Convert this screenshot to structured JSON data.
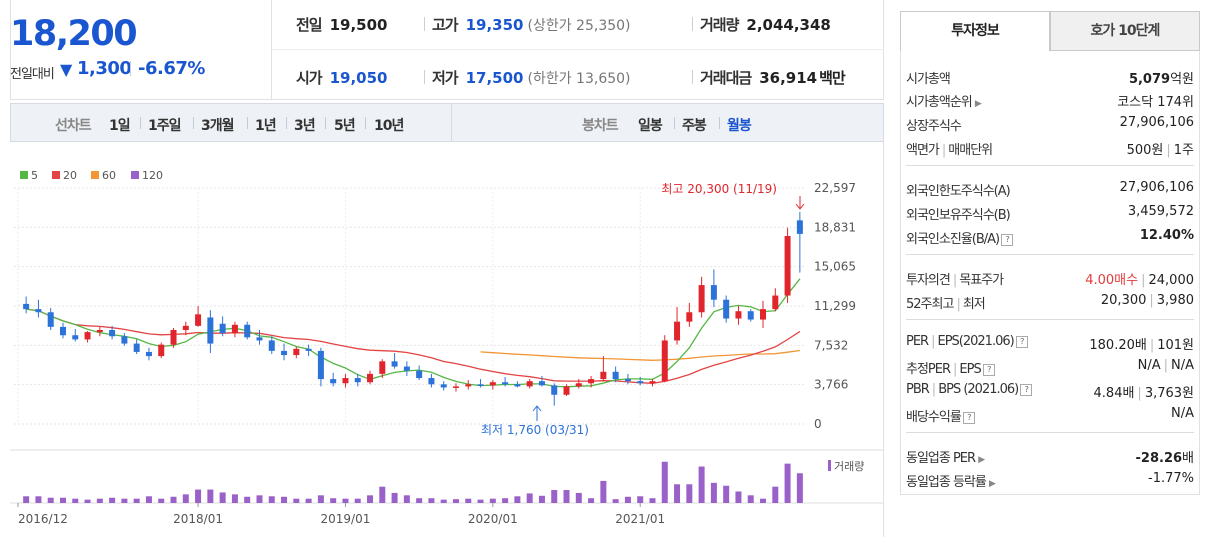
{
  "summary": {
    "current_price": "18,200",
    "change_label": "전일대비",
    "change_arrow": "▼",
    "change_value": "1,300",
    "change_pct": "-6.67%"
  },
  "stats": {
    "prev_label": "전일",
    "prev_value": "19,500",
    "high_label": "고가",
    "high_value": "19,350",
    "upper_limit": "(상한가 25,350)",
    "volume_label": "거래량",
    "volume_value": "2,044,348",
    "open_label": "시가",
    "open_value": "19,050",
    "low_label": "저가",
    "low_value": "17,500",
    "lower_limit": "(하한가 13,650)",
    "amount_label": "거래대금",
    "amount_value": "36,914",
    "amount_unit": "백만"
  },
  "toolbar": {
    "line_label": "선차트",
    "line_periods": [
      "1일",
      "1주일",
      "3개월",
      "1년",
      "3년",
      "5년",
      "10년"
    ],
    "candle_label": "봉차트",
    "candle_periods": [
      "일봉",
      "주봉",
      "월봉"
    ],
    "active_candle": "월봉"
  },
  "chart_data": {
    "type": "candlestick",
    "legend": [
      "5",
      "20",
      "60",
      "120"
    ],
    "ma_colors": {
      "5": "#55b746",
      "20": "#e34444",
      "60": "#f29636",
      "120": "#9a62c8"
    },
    "up_color": "#e0262c",
    "down_color": "#2c73d9",
    "y_ticks": [
      "22,597",
      "18,831",
      "15,065",
      "11,299",
      "7,532",
      "3,766",
      "0"
    ],
    "ylim": [
      0,
      22597
    ],
    "x_labels": [
      "2016/12",
      "2018/01",
      "2019/01",
      "2020/01",
      "2021/01"
    ],
    "volume_label": "거래량",
    "high_annotation": "최고 20,300 (11/19)",
    "low_annotation": "최저 1,760 (03/31)",
    "candles": [
      {
        "o": 11500,
        "h": 12200,
        "l": 10600,
        "c": 11000
      },
      {
        "o": 11000,
        "h": 11900,
        "l": 10200,
        "c": 10700
      },
      {
        "o": 10700,
        "h": 11100,
        "l": 9000,
        "c": 9300
      },
      {
        "o": 9300,
        "h": 9700,
        "l": 8200,
        "c": 8500
      },
      {
        "o": 8500,
        "h": 9100,
        "l": 7900,
        "c": 8100
      },
      {
        "o": 8100,
        "h": 8900,
        "l": 7800,
        "c": 8800
      },
      {
        "o": 8800,
        "h": 9300,
        "l": 8400,
        "c": 9000
      },
      {
        "o": 9000,
        "h": 9400,
        "l": 8100,
        "c": 8400
      },
      {
        "o": 8400,
        "h": 8700,
        "l": 7500,
        "c": 7700
      },
      {
        "o": 7700,
        "h": 8100,
        "l": 6700,
        "c": 6900
      },
      {
        "o": 6900,
        "h": 7300,
        "l": 6100,
        "c": 6500
      },
      {
        "o": 6500,
        "h": 7800,
        "l": 6300,
        "c": 7600
      },
      {
        "o": 7600,
        "h": 9200,
        "l": 7300,
        "c": 9000
      },
      {
        "o": 9000,
        "h": 9800,
        "l": 8500,
        "c": 9400
      },
      {
        "o": 9400,
        "h": 11300,
        "l": 9300,
        "c": 10500
      },
      {
        "o": 10200,
        "h": 10900,
        "l": 6800,
        "c": 7700
      },
      {
        "o": 9600,
        "h": 10300,
        "l": 8400,
        "c": 8700
      },
      {
        "o": 8700,
        "h": 9800,
        "l": 8300,
        "c": 9500
      },
      {
        "o": 9500,
        "h": 9800,
        "l": 8100,
        "c": 8300
      },
      {
        "o": 8300,
        "h": 9000,
        "l": 7600,
        "c": 8000
      },
      {
        "o": 8000,
        "h": 8400,
        "l": 6700,
        "c": 7000
      },
      {
        "o": 7000,
        "h": 7700,
        "l": 6100,
        "c": 6600
      },
      {
        "o": 6600,
        "h": 7400,
        "l": 6300,
        "c": 7200
      },
      {
        "o": 7200,
        "h": 7600,
        "l": 6500,
        "c": 7000
      },
      {
        "o": 7000,
        "h": 7300,
        "l": 3600,
        "c": 4300
      },
      {
        "o": 4300,
        "h": 4900,
        "l": 3600,
        "c": 3900
      },
      {
        "o": 3900,
        "h": 4800,
        "l": 3500,
        "c": 4400
      },
      {
        "o": 4400,
        "h": 4800,
        "l": 3600,
        "c": 4000
      },
      {
        "o": 4000,
        "h": 5100,
        "l": 3800,
        "c": 4800
      },
      {
        "o": 4800,
        "h": 6200,
        "l": 4400,
        "c": 6000
      },
      {
        "o": 6000,
        "h": 6800,
        "l": 5300,
        "c": 5500
      },
      {
        "o": 5500,
        "h": 6000,
        "l": 4600,
        "c": 5100
      },
      {
        "o": 5100,
        "h": 5600,
        "l": 4200,
        "c": 4400
      },
      {
        "o": 4400,
        "h": 4800,
        "l": 3500,
        "c": 3800
      },
      {
        "o": 3800,
        "h": 4100,
        "l": 3200,
        "c": 3500
      },
      {
        "o": 3500,
        "h": 3900,
        "l": 3100,
        "c": 3600
      },
      {
        "o": 3600,
        "h": 4200,
        "l": 3300,
        "c": 3800
      },
      {
        "o": 3800,
        "h": 4300,
        "l": 3500,
        "c": 3700
      },
      {
        "o": 3700,
        "h": 4200,
        "l": 3300,
        "c": 4000
      },
      {
        "o": 4000,
        "h": 4500,
        "l": 3600,
        "c": 3800
      },
      {
        "o": 3800,
        "h": 4100,
        "l": 3500,
        "c": 3600
      },
      {
        "o": 3600,
        "h": 4300,
        "l": 3400,
        "c": 4100
      },
      {
        "o": 4100,
        "h": 4600,
        "l": 3600,
        "c": 3700
      },
      {
        "o": 3700,
        "h": 3900,
        "l": 1760,
        "c": 2800
      },
      {
        "o": 2800,
        "h": 3800,
        "l": 2700,
        "c": 3600
      },
      {
        "o": 3600,
        "h": 4300,
        "l": 3400,
        "c": 3900
      },
      {
        "o": 3900,
        "h": 4600,
        "l": 3500,
        "c": 4300
      },
      {
        "o": 4300,
        "h": 6500,
        "l": 4100,
        "c": 5000
      },
      {
        "o": 5000,
        "h": 5500,
        "l": 4000,
        "c": 4300
      },
      {
        "o": 4300,
        "h": 4800,
        "l": 3800,
        "c": 4100
      },
      {
        "o": 4100,
        "h": 4500,
        "l": 3700,
        "c": 3900
      },
      {
        "o": 3900,
        "h": 4300,
        "l": 3600,
        "c": 4100
      },
      {
        "o": 4100,
        "h": 8500,
        "l": 4000,
        "c": 8000
      },
      {
        "o": 8000,
        "h": 11200,
        "l": 7600,
        "c": 9800
      },
      {
        "o": 9800,
        "h": 11600,
        "l": 9300,
        "c": 10700
      },
      {
        "o": 10700,
        "h": 14100,
        "l": 10200,
        "c": 13300
      },
      {
        "o": 13300,
        "h": 14800,
        "l": 11200,
        "c": 11900
      },
      {
        "o": 11900,
        "h": 12300,
        "l": 9700,
        "c": 10100
      },
      {
        "o": 10100,
        "h": 11300,
        "l": 9500,
        "c": 10800
      },
      {
        "o": 10800,
        "h": 11000,
        "l": 9800,
        "c": 10000
      },
      {
        "o": 10000,
        "h": 11800,
        "l": 9200,
        "c": 11000
      },
      {
        "o": 11000,
        "h": 13000,
        "l": 10800,
        "c": 12300
      },
      {
        "o": 12300,
        "h": 18800,
        "l": 11600,
        "c": 18000
      },
      {
        "o": 19500,
        "h": 20300,
        "l": 14500,
        "c": 18200
      }
    ],
    "volume": [
      0.14,
      0.14,
      0.11,
      0.11,
      0.09,
      0.07,
      0.09,
      0.11,
      0.09,
      0.09,
      0.14,
      0.09,
      0.13,
      0.18,
      0.28,
      0.28,
      0.22,
      0.18,
      0.13,
      0.16,
      0.14,
      0.13,
      0.09,
      0.09,
      0.16,
      0.1,
      0.09,
      0.09,
      0.16,
      0.34,
      0.21,
      0.16,
      0.1,
      0.1,
      0.07,
      0.08,
      0.09,
      0.07,
      0.09,
      0.1,
      0.14,
      0.2,
      0.15,
      0.27,
      0.27,
      0.21,
      0.1,
      0.46,
      0.08,
      0.13,
      0.14,
      0.1,
      0.86,
      0.39,
      0.39,
      0.76,
      0.42,
      0.36,
      0.24,
      0.16,
      0.09,
      0.34,
      0.82,
      0.62
    ]
  },
  "panel": {
    "tab_invest": "투자정보",
    "tab_quote": "호가 10단계",
    "mktcap_label": "시가총액",
    "mktcap_value": "5,079",
    "mktcap_unit": "억원",
    "mktcap_rank_label": "시가총액순위",
    "mktcap_rank_value": "코스닥 174위",
    "shares_label": "상장주식수",
    "shares_value": "27,906,106",
    "par_label": "액면가",
    "unit_label": "매매단위",
    "par_value": "500원",
    "unit_value": "1주",
    "foreign_limit_label": "외국인한도주식수(A)",
    "foreign_limit_value": "27,906,106",
    "foreign_hold_label": "외국인보유주식수(B)",
    "foreign_hold_value": "3,459,572",
    "foreign_ratio_label": "외국인소진율(B/A)",
    "foreign_ratio_value": "12.40%",
    "opinion_label": "투자의견",
    "target_label": "목표주가",
    "opinion_value": "4.00매수",
    "target_value": "24,000",
    "w52_high_label": "52주최고",
    "w52_low_label": "최저",
    "w52_high_value": "20,300",
    "w52_low_value": "3,980",
    "per_label": "PER",
    "eps_label": "EPS(2021.06)",
    "per_value": "180.20배",
    "eps_value": "101원",
    "est_per_label": "추정PER",
    "est_eps_label": "EPS",
    "est_per_value": "N/A",
    "est_eps_value": "N/A",
    "pbr_label": "PBR",
    "bps_label": "BPS (2021.06)",
    "pbr_value": "4.84배",
    "bps_value": "3,763원",
    "div_label": "배당수익률",
    "div_value": "N/A",
    "sector_per_label": "동일업종 PER",
    "sector_per_value": "-28.26",
    "sector_per_unit": "배",
    "sector_chg_label": "동일업종 등락률",
    "sector_chg_value": "-1.77%",
    "help_icon": "?"
  }
}
